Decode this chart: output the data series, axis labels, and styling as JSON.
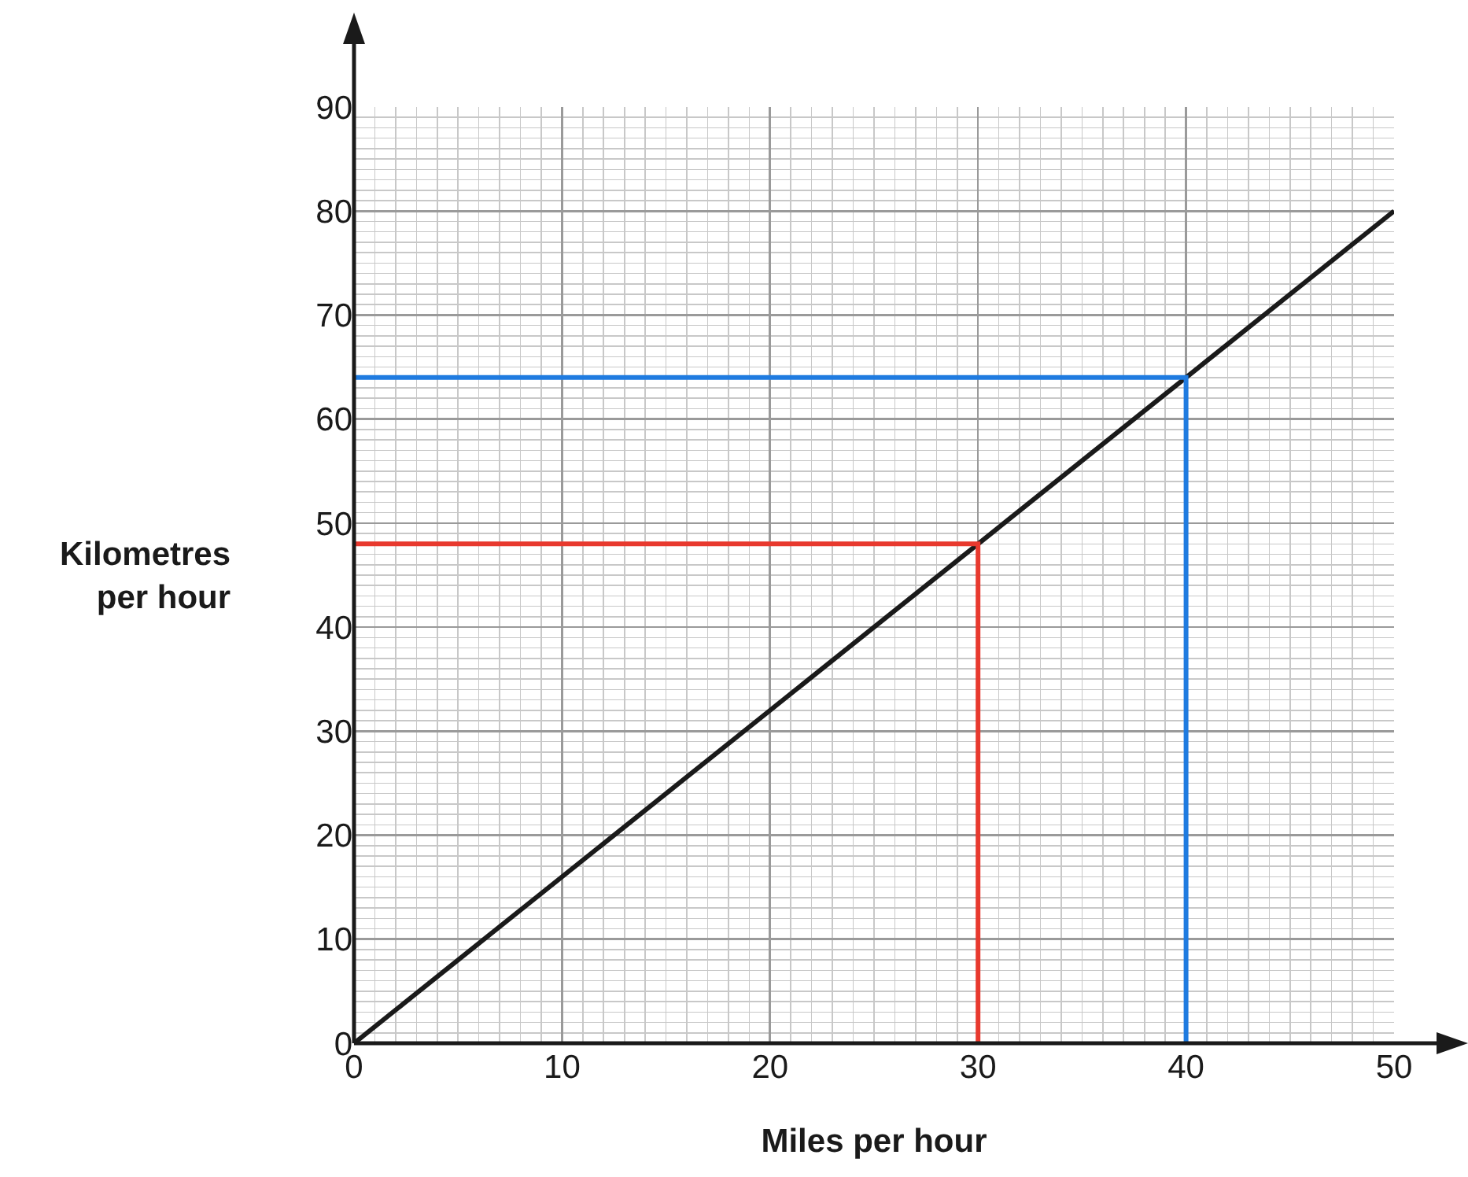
{
  "chart_data": {
    "type": "line",
    "xlabel": "Miles per hour",
    "ylabel": "Kilometres per hour",
    "xlim": [
      0,
      50
    ],
    "ylim": [
      0,
      90
    ],
    "xticks": [
      0,
      10,
      20,
      30,
      40,
      50
    ],
    "yticks": [
      0,
      10,
      20,
      30,
      40,
      50,
      60,
      70,
      80,
      90
    ],
    "grid": true,
    "marker": "none",
    "line_style": "solid",
    "series": [
      {
        "color": "#1a1a1a",
        "x": [
          0,
          50
        ],
        "values": [
          0,
          80
        ]
      },
      {
        "color": "#e8392e",
        "x": [
          0,
          30,
          30
        ],
        "values": [
          48,
          48,
          0
        ]
      },
      {
        "color": "#1f7be0",
        "x": [
          0,
          40,
          40
        ],
        "values": [
          64,
          64,
          0
        ]
      }
    ]
  }
}
